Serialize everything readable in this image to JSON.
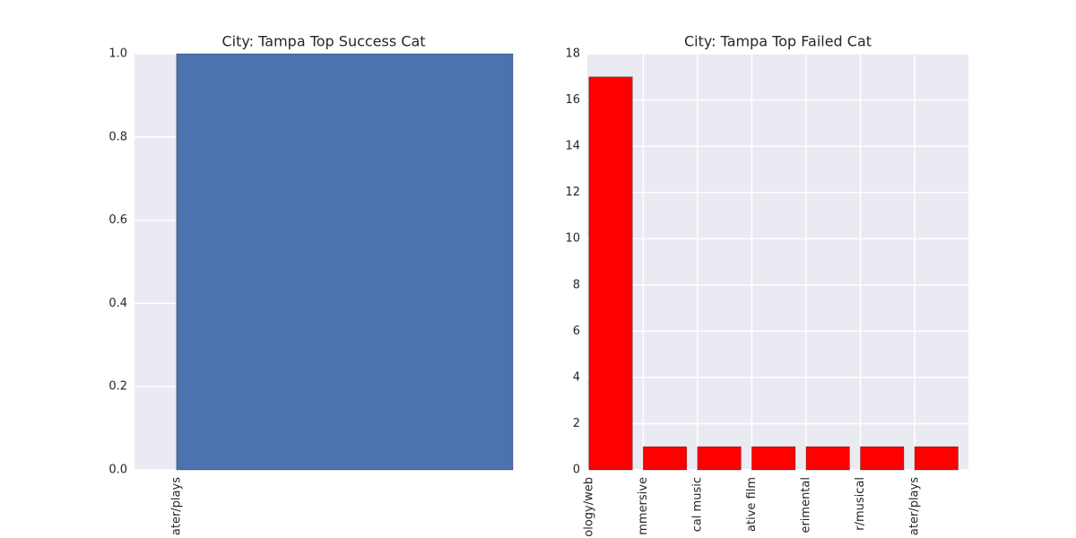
{
  "chart_data": [
    {
      "type": "bar",
      "title": "City: Tampa Top Success Cat",
      "categories": [
        "ater/plays"
      ],
      "values": [
        1
      ],
      "color": "#4c72b0",
      "ylim": [
        0,
        1
      ],
      "yticks": [
        {
          "value": 0,
          "label": "0.0"
        },
        {
          "value": 0.2,
          "label": "0.2"
        },
        {
          "value": 0.4,
          "label": "0.4"
        },
        {
          "value": 0.6,
          "label": "0.6"
        },
        {
          "value": 0.8,
          "label": "0.8"
        },
        {
          "value": 1,
          "label": "1.0"
        }
      ],
      "grid": true
    },
    {
      "type": "bar",
      "title": "City: Tampa Top Failed Cat",
      "categories": [
        "ology/web",
        "mmersive",
        "cal music",
        "ative film",
        "erimental",
        "r/musical",
        "ater/plays"
      ],
      "values": [
        17,
        1,
        1,
        1,
        1,
        1,
        1
      ],
      "color": "#ff0000",
      "ylim": [
        0,
        18
      ],
      "yticks": [
        0,
        2,
        4,
        6,
        8,
        10,
        12,
        14,
        16,
        18
      ],
      "grid": true
    }
  ]
}
